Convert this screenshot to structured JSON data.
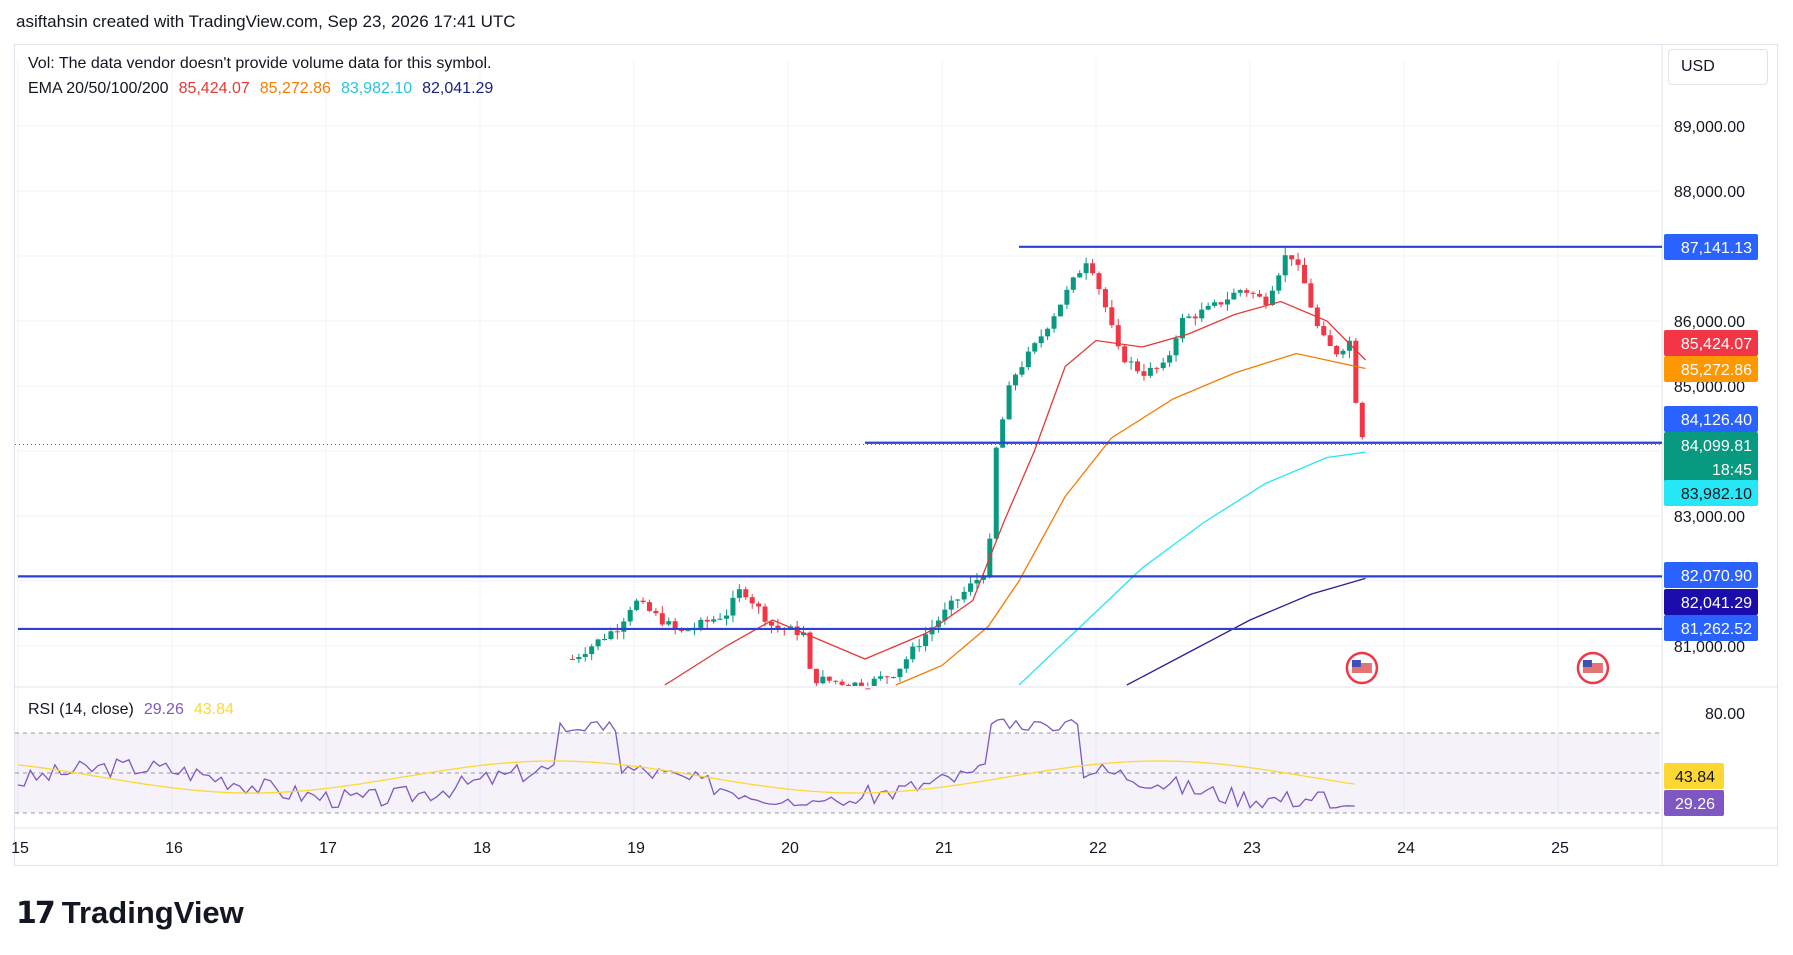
{
  "header": {
    "attribution": "asiftahsin created with TradingView.com, Sep 23, 2026 17:41 UTC"
  },
  "legend": {
    "vol_text": "Vol: The data vendor doesn't provide volume data for this symbol.",
    "ema_label": "EMA 20/50/100/200",
    "ema_values": [
      {
        "text": "85,424.07",
        "color": "#e53935"
      },
      {
        "text": "85,272.86",
        "color": "#f57c00"
      },
      {
        "text": "83,982.10",
        "color": "#26c6da"
      },
      {
        "text": "82,041.29",
        "color": "#1a237e"
      }
    ],
    "rsi_label": "RSI (14, close)",
    "rsi_values": [
      {
        "text": "29.26",
        "color": "#7e57c2"
      },
      {
        "text": "43.84",
        "color": "#fdd835"
      }
    ]
  },
  "currency": "USD",
  "footer": {
    "brand": "TradingView",
    "logo_mark": "17"
  },
  "chart_data": {
    "type": "candlestick",
    "x_ticks": [
      "15",
      "16",
      "17",
      "18",
      "19",
      "20",
      "21",
      "22",
      "23",
      "24",
      "25"
    ],
    "price_ticks": [
      "89,000.00",
      "88,000.00",
      "86,000.00",
      "85,000.00",
      "83,000.00",
      "81,000.00"
    ],
    "price_range": [
      80400,
      90000
    ],
    "price_labels": [
      {
        "text": "87,141.13",
        "bg": "#2962ff",
        "fg": "#ffffff",
        "value": 87141.13
      },
      {
        "text": "85,424.07",
        "bg": "#f23645",
        "fg": "#ffffff",
        "value": 85424.07
      },
      {
        "text": "85,272.86",
        "bg": "#ff9800",
        "fg": "#ffffff",
        "value": 85272.86
      },
      {
        "text": "84,126.40",
        "bg": "#2962ff",
        "fg": "#ffffff",
        "value": 84126.4
      },
      {
        "text": "84,099.81",
        "bg": "#089981",
        "fg": "#ffffff",
        "value": 84099.81,
        "sub": "18:45"
      },
      {
        "text": "83,982.10",
        "bg": "#26e7f5",
        "fg": "#131722",
        "value": 83982.1
      },
      {
        "text": "82,070.90",
        "bg": "#2962ff",
        "fg": "#ffffff",
        "value": 82070.9
      },
      {
        "text": "82,041.29",
        "bg": "#1a0dab",
        "fg": "#ffffff",
        "value": 82041.29
      },
      {
        "text": "81,262.52",
        "bg": "#2962ff",
        "fg": "#ffffff",
        "value": 81262.52
      }
    ],
    "horizontal_lines": [
      {
        "value": 87141.13,
        "from_day": 21.5
      },
      {
        "value": 84126.4,
        "from_day": 20.5
      },
      {
        "value": 82070.9,
        "from_day": 15.0
      },
      {
        "value": 81262.52,
        "from_day": 15.0
      }
    ],
    "rsi_ticks": [
      "80.00"
    ],
    "rsi_labels": [
      {
        "text": "43.84",
        "bg": "#fdd835",
        "fg": "#131722",
        "value": 43.84
      },
      {
        "text": "29.26",
        "bg": "#7e57c2",
        "fg": "#ffffff",
        "value": 29.26
      }
    ],
    "events_days": [
      23.98,
      25.48
    ]
  }
}
